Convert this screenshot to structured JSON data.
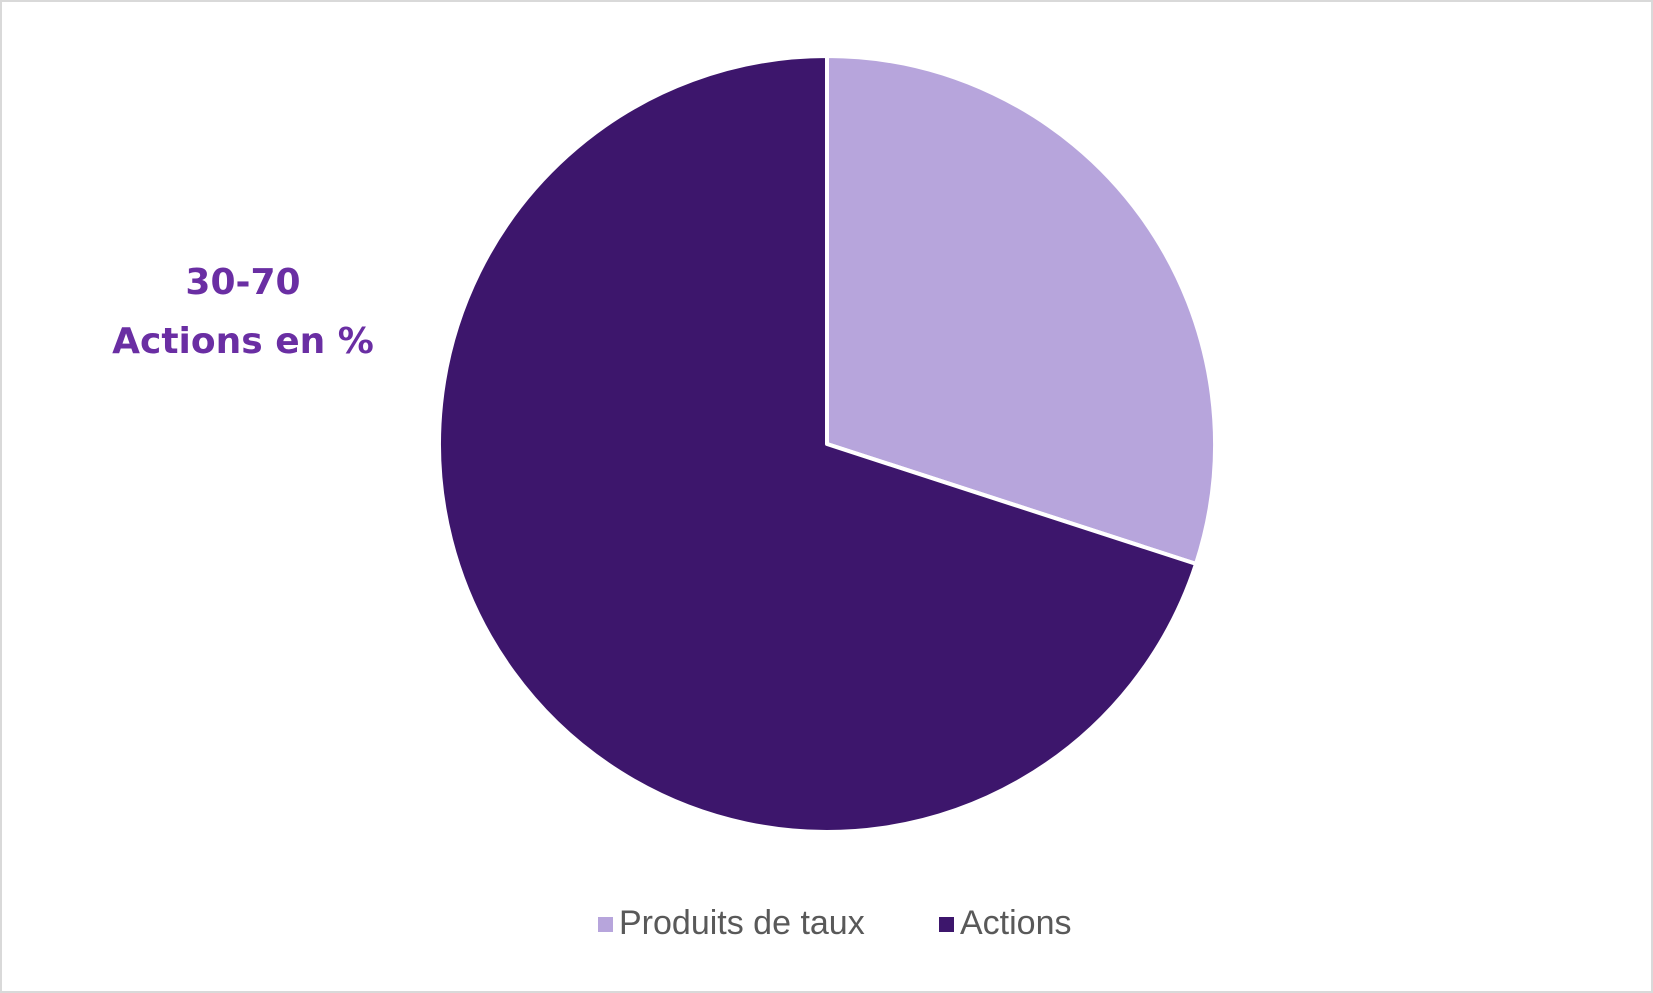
{
  "chart_data": {
    "type": "pie",
    "title": "30-70",
    "subtitle": "Actions en %",
    "categories": [
      "Produits de taux",
      "Actions"
    ],
    "values": [
      30,
      70
    ],
    "colors": [
      "#b7a5dc",
      "#3d166c"
    ],
    "legend": "bottom"
  }
}
